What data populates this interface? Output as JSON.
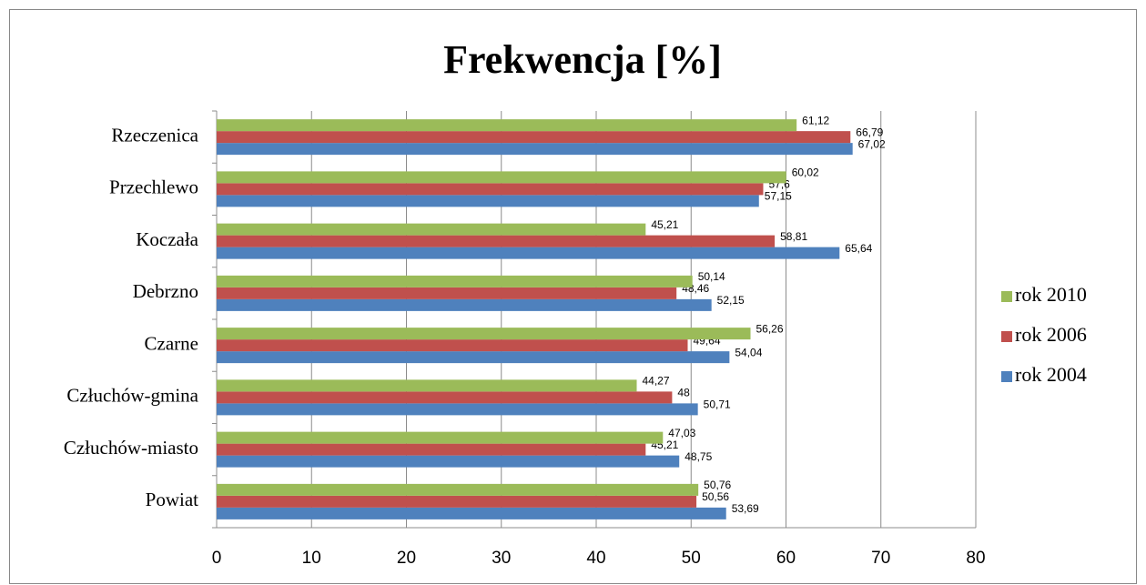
{
  "chart_data": {
    "type": "bar",
    "orientation": "horizontal",
    "title": "Frekwencja [%]",
    "categories": [
      "Powiat",
      "Człuchów-miasto",
      "Człuchów-gmina",
      "Czarne",
      "Debrzno",
      "Koczała",
      "Przechlewo",
      "Rzeczenica"
    ],
    "series": [
      {
        "name": "rok 2004",
        "color": "#4f81bd",
        "values": [
          53.69,
          48.75,
          50.71,
          54.04,
          52.15,
          65.64,
          57.15,
          67.02
        ],
        "value_labels": [
          "53,69",
          "48,75",
          "50,71",
          "54,04",
          "52,15",
          "65,64",
          "57,15",
          "67,02"
        ]
      },
      {
        "name": "rok 2006",
        "color": "#c0504d",
        "values": [
          50.56,
          45.21,
          48,
          49.64,
          48.46,
          58.81,
          57.6,
          66.79
        ],
        "value_labels": [
          "50,56",
          "45,21",
          "48",
          "49,64",
          "48,46",
          "58,81",
          "57,6",
          "66,79"
        ]
      },
      {
        "name": "rok 2010",
        "color": "#9bbb59",
        "values": [
          50.76,
          47.03,
          44.27,
          56.26,
          50.14,
          45.21,
          60.02,
          61.12
        ],
        "value_labels": [
          "50,76",
          "47,03",
          "44,27",
          "56,26",
          "50,14",
          "45,21",
          "60,02",
          "61,12"
        ]
      }
    ],
    "xlim": [
      0,
      80
    ],
    "xticks": [
      0,
      10,
      20,
      30,
      40,
      50,
      60,
      70,
      80
    ],
    "grid": true,
    "legend": "right"
  }
}
